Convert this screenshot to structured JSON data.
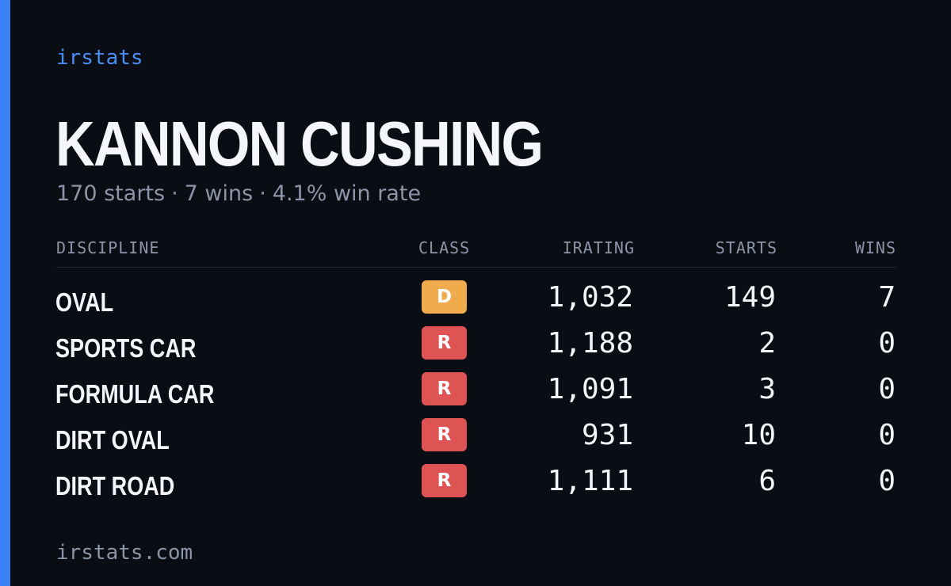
{
  "brand": "irstats",
  "player": {
    "name": "KANNON CUSHING",
    "starts_text": "170 starts",
    "wins_text": "7 wins",
    "win_rate_text": "4.1% win rate"
  },
  "separator": "·",
  "table": {
    "headers": {
      "discipline": "DISCIPLINE",
      "class": "CLASS",
      "irating": "IRATING",
      "starts": "STARTS",
      "wins": "WINS"
    },
    "rows": [
      {
        "discipline": "OVAL",
        "class": "D",
        "irating": "1,032",
        "starts": "149",
        "wins": "7"
      },
      {
        "discipline": "SPORTS CAR",
        "class": "R",
        "irating": "1,188",
        "starts": "2",
        "wins": "0"
      },
      {
        "discipline": "FORMULA CAR",
        "class": "R",
        "irating": "1,091",
        "starts": "3",
        "wins": "0"
      },
      {
        "discipline": "DIRT OVAL",
        "class": "R",
        "irating": "931",
        "starts": "10",
        "wins": "0"
      },
      {
        "discipline": "DIRT ROAD",
        "class": "R",
        "irating": "1,111",
        "starts": "6",
        "wins": "0"
      }
    ]
  },
  "colors": {
    "accent": "#3b82f6",
    "class_d": "#f0ac4c",
    "class_r": "#de5454",
    "background": "#0a0d14"
  },
  "footer": "irstats.com"
}
